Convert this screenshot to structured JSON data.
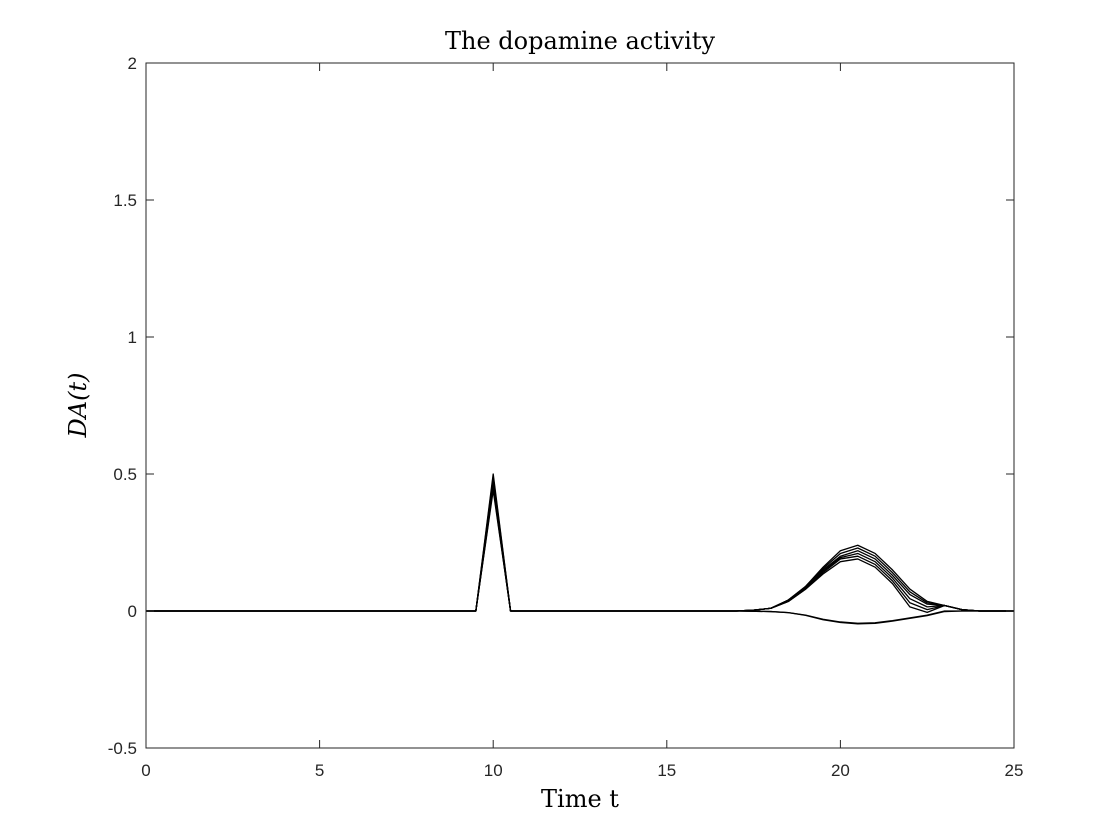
{
  "chart_data": {
    "type": "line",
    "title": "The dopamine activity",
    "xlabel": "Time t",
    "ylabel": "DA(t)",
    "xlim": [
      0,
      25
    ],
    "ylim": [
      -0.5,
      2
    ],
    "xticks": [
      0,
      5,
      10,
      15,
      20,
      25
    ],
    "yticks": [
      -0.5,
      0,
      0.5,
      1,
      1.5,
      2
    ],
    "xtick_labels": [
      "0",
      "5",
      "10",
      "15",
      "20",
      "25"
    ],
    "ytick_labels": [
      "-0.5",
      "0",
      "0.5",
      "1",
      "1.5",
      "2"
    ],
    "grid": false,
    "line_color": "#000000",
    "series": [
      {
        "x": [
          0,
          9.5,
          10,
          10.5,
          17,
          17.5,
          18,
          18.5,
          19,
          19.5,
          20,
          20.5,
          21,
          21.5,
          22,
          22.5,
          23,
          23.5,
          24,
          25
        ],
        "y": [
          0,
          0,
          0.5,
          0,
          0,
          0.003,
          0.01,
          0.04,
          0.09,
          0.16,
          0.22,
          0.24,
          0.21,
          0.15,
          0.08,
          0.035,
          0.02,
          0.005,
          0,
          0
        ]
      },
      {
        "x": [
          0,
          9.5,
          10,
          10.5,
          17,
          17.5,
          18,
          18.5,
          19,
          19.5,
          20,
          20.5,
          21,
          21.5,
          22,
          22.5,
          23,
          23.5,
          24,
          25
        ],
        "y": [
          0,
          0,
          0.49,
          0,
          0,
          0.003,
          0.01,
          0.04,
          0.09,
          0.155,
          0.21,
          0.23,
          0.2,
          0.14,
          0.07,
          0.03,
          0.02,
          0.005,
          0,
          0
        ]
      },
      {
        "x": [
          0,
          9.5,
          10,
          10.5,
          17,
          17.5,
          18,
          18.5,
          19,
          19.5,
          20,
          20.5,
          21,
          21.5,
          22,
          22.5,
          23,
          23.5,
          24,
          25
        ],
        "y": [
          0,
          0,
          0.48,
          0,
          0,
          0.003,
          0.01,
          0.04,
          0.085,
          0.15,
          0.2,
          0.22,
          0.19,
          0.13,
          0.06,
          0.025,
          0.02,
          0.005,
          0,
          0
        ]
      },
      {
        "x": [
          0,
          9.5,
          10,
          10.5,
          17,
          17.5,
          18,
          18.5,
          19,
          19.5,
          20,
          20.5,
          21,
          21.5,
          22,
          22.5,
          23,
          23.5,
          24,
          25
        ],
        "y": [
          0,
          0,
          0.47,
          0,
          0,
          0.003,
          0.01,
          0.035,
          0.085,
          0.145,
          0.195,
          0.21,
          0.18,
          0.12,
          0.045,
          0.015,
          0.02,
          0.005,
          0,
          0
        ]
      },
      {
        "x": [
          0,
          9.5,
          10,
          10.5,
          17,
          17.5,
          18,
          18.5,
          19,
          19.5,
          20,
          20.5,
          21,
          21.5,
          22,
          22.5,
          23,
          23.5,
          24,
          25
        ],
        "y": [
          0,
          0,
          0.46,
          0,
          0,
          0.003,
          0.01,
          0.035,
          0.08,
          0.14,
          0.19,
          0.2,
          0.17,
          0.11,
          0.03,
          0.005,
          0.02,
          0.005,
          0,
          0
        ]
      },
      {
        "x": [
          0,
          9.5,
          10,
          10.5,
          17,
          17.5,
          18,
          18.5,
          19,
          19.5,
          20,
          20.5,
          21,
          21.5,
          22,
          22.5,
          23,
          23.5,
          24,
          25
        ],
        "y": [
          0,
          0,
          0.45,
          0,
          0,
          0.003,
          0.01,
          0.035,
          0.08,
          0.135,
          0.18,
          0.19,
          0.16,
          0.1,
          0.015,
          -0.005,
          0.02,
          0.005,
          0,
          0
        ]
      },
      {
        "x": [
          0,
          9.5,
          10,
          10.5,
          17,
          18,
          18.5,
          19,
          19.5,
          20,
          20.5,
          21,
          21.5,
          22,
          22.5,
          23,
          23.5,
          24,
          25
        ],
        "y": [
          0,
          0,
          0.45,
          0,
          0,
          -0.002,
          -0.006,
          -0.015,
          -0.03,
          -0.04,
          -0.045,
          -0.043,
          -0.035,
          -0.025,
          -0.015,
          0,
          0,
          0,
          0
        ]
      },
      {
        "x": [
          0,
          9.5,
          10,
          10.5,
          17,
          18,
          18.5,
          19,
          19.5,
          20,
          20.5,
          21,
          21.5,
          22,
          22.5,
          23,
          23.5,
          24,
          25
        ],
        "y": [
          0,
          0,
          0.44,
          0,
          0,
          -0.002,
          -0.006,
          -0.016,
          -0.032,
          -0.042,
          -0.047,
          -0.045,
          -0.037,
          -0.027,
          -0.017,
          -0.002,
          0,
          0,
          0
        ]
      }
    ]
  }
}
